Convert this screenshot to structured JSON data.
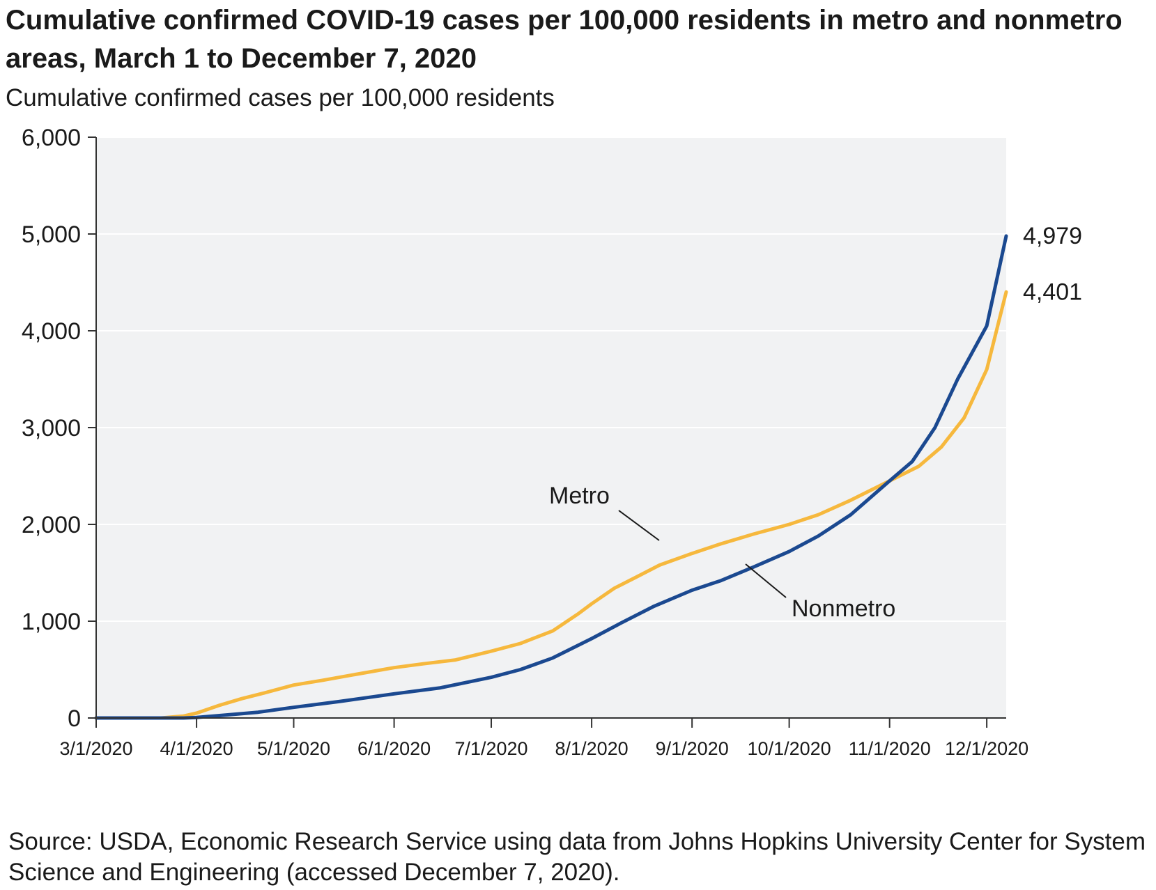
{
  "chart_data": {
    "type": "line",
    "title": "Cumulative confirmed COVID-19 cases per 100,000 residents in metro and nonmetro areas, March 1 to December 7, 2020",
    "ylabel": "Cumulative confirmed cases per 100,000 residents",
    "xlabel": "",
    "ylim": [
      0,
      6000
    ],
    "yticks": [
      "0",
      "1,000",
      "2,000",
      "3,000",
      "4,000",
      "5,000",
      "6,000"
    ],
    "ytick_values": [
      0,
      1000,
      2000,
      3000,
      4000,
      5000,
      6000
    ],
    "xlim": [
      "2020-03-01",
      "2020-12-07"
    ],
    "xticks": [
      "3/1/2020",
      "4/1/2020",
      "5/1/2020",
      "6/1/2020",
      "7/1/2020",
      "8/1/2020",
      "9/1/2020",
      "10/1/2020",
      "11/1/2020",
      "12/1/2020"
    ],
    "xtick_dates": [
      "2020-03-01",
      "2020-04-01",
      "2020-05-01",
      "2020-06-01",
      "2020-07-01",
      "2020-08-01",
      "2020-09-01",
      "2020-10-01",
      "2020-11-01",
      "2020-12-01"
    ],
    "grid": "horizontal",
    "background": "#f1f2f3",
    "series": [
      {
        "name": "Metro",
        "color": "#f6b83d",
        "end_label": "4,401",
        "points": [
          [
            "2020-03-01",
            0
          ],
          [
            "2020-03-21",
            0
          ],
          [
            "2020-03-28",
            20
          ],
          [
            "2020-04-01",
            50
          ],
          [
            "2020-04-08",
            130
          ],
          [
            "2020-04-15",
            200
          ],
          [
            "2020-04-22",
            260
          ],
          [
            "2020-05-01",
            340
          ],
          [
            "2020-05-10",
            390
          ],
          [
            "2020-05-20",
            450
          ],
          [
            "2020-06-01",
            520
          ],
          [
            "2020-06-10",
            560
          ],
          [
            "2020-06-20",
            600
          ],
          [
            "2020-07-01",
            690
          ],
          [
            "2020-07-10",
            770
          ],
          [
            "2020-07-20",
            900
          ],
          [
            "2020-07-28",
            1080
          ],
          [
            "2020-08-01",
            1180
          ],
          [
            "2020-08-08",
            1340
          ],
          [
            "2020-08-15",
            1460
          ],
          [
            "2020-08-22",
            1580
          ],
          [
            "2020-09-01",
            1700
          ],
          [
            "2020-09-10",
            1800
          ],
          [
            "2020-09-20",
            1900
          ],
          [
            "2020-10-01",
            2000
          ],
          [
            "2020-10-10",
            2100
          ],
          [
            "2020-10-20",
            2250
          ],
          [
            "2020-11-01",
            2450
          ],
          [
            "2020-11-10",
            2600
          ],
          [
            "2020-11-17",
            2800
          ],
          [
            "2020-11-24",
            3100
          ],
          [
            "2020-12-01",
            3600
          ],
          [
            "2020-12-07",
            4401
          ]
        ]
      },
      {
        "name": "Nonmetro",
        "color": "#1b4990",
        "end_label": "4,979",
        "points": [
          [
            "2020-03-01",
            0
          ],
          [
            "2020-03-28",
            0
          ],
          [
            "2020-04-01",
            5
          ],
          [
            "2020-04-10",
            30
          ],
          [
            "2020-04-20",
            60
          ],
          [
            "2020-05-01",
            110
          ],
          [
            "2020-05-15",
            170
          ],
          [
            "2020-06-01",
            250
          ],
          [
            "2020-06-15",
            310
          ],
          [
            "2020-07-01",
            420
          ],
          [
            "2020-07-10",
            500
          ],
          [
            "2020-07-20",
            620
          ],
          [
            "2020-08-01",
            820
          ],
          [
            "2020-08-10",
            980
          ],
          [
            "2020-08-20",
            1150
          ],
          [
            "2020-09-01",
            1320
          ],
          [
            "2020-09-10",
            1420
          ],
          [
            "2020-09-20",
            1560
          ],
          [
            "2020-10-01",
            1720
          ],
          [
            "2020-10-10",
            1880
          ],
          [
            "2020-10-20",
            2100
          ],
          [
            "2020-11-01",
            2450
          ],
          [
            "2020-11-08",
            2650
          ],
          [
            "2020-11-15",
            3000
          ],
          [
            "2020-11-22",
            3500
          ],
          [
            "2020-12-01",
            4050
          ],
          [
            "2020-12-07",
            4979
          ]
        ]
      }
    ],
    "annotations": [
      {
        "text": "Metro",
        "series": "Metro"
      },
      {
        "text": "Nonmetro",
        "series": "Nonmetro"
      }
    ],
    "source": "Source: USDA, Economic Research Service using data from Johns Hopkins University Center for System Science and Engineering (accessed December 7, 2020)."
  }
}
